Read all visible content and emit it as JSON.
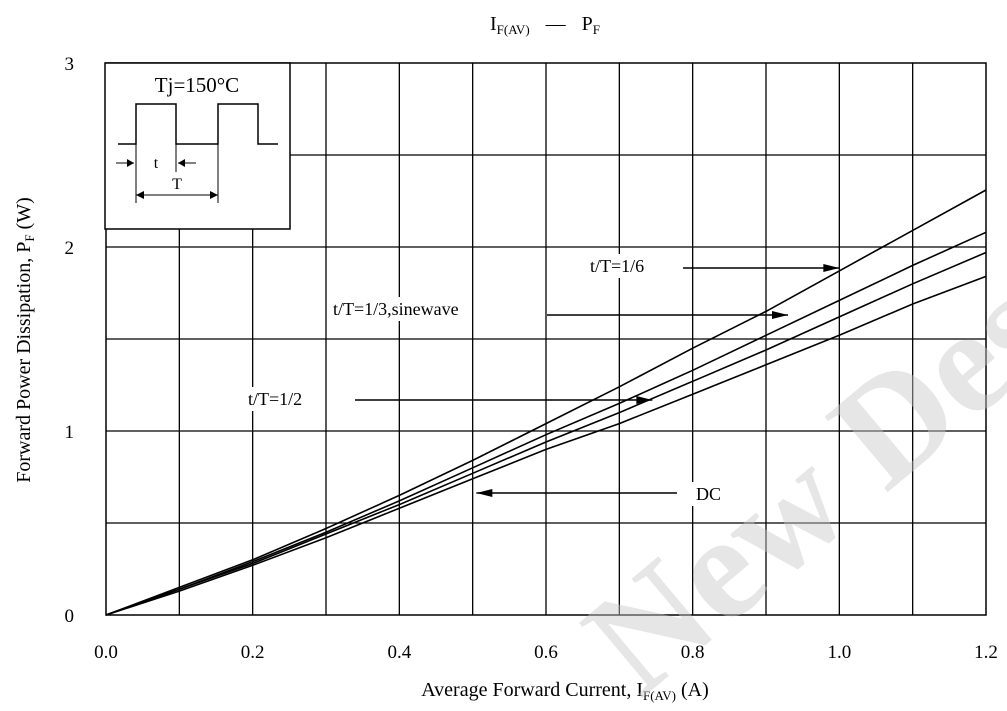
{
  "chart_data": {
    "type": "line",
    "title": {
      "main": "I",
      "sub": "F(AV)",
      "dash": "—",
      "main2": "P",
      "sub2": "F"
    },
    "xlabel": {
      "pre": "Average Forward Current, I",
      "sub": "F(AV)",
      "post": " (A)"
    },
    "ylabel": {
      "pre": "Forward Power Dissipation, P",
      "sub": "F",
      "post": " (W)"
    },
    "xlim": [
      0,
      1.2
    ],
    "ylim": [
      0,
      3
    ],
    "x_ticks": [
      "0.0",
      "0.2",
      "0.4",
      "0.6",
      "0.8",
      "1.0",
      "1.2"
    ],
    "y_ticks": [
      "0",
      "1",
      "2",
      "3"
    ],
    "grid": true,
    "series": [
      {
        "name": "t/T=1/6",
        "x": [
          0,
          0.1,
          0.2,
          0.3,
          0.4,
          0.5,
          0.6,
          0.7,
          0.8,
          0.9,
          1.0,
          1.1,
          1.2
        ],
        "y": [
          0,
          0.15,
          0.3,
          0.47,
          0.65,
          0.84,
          1.04,
          1.24,
          1.45,
          1.65,
          1.87,
          2.09,
          2.31
        ]
      },
      {
        "name": "t/T=1/3,sinewave",
        "x": [
          0,
          0.1,
          0.2,
          0.3,
          0.4,
          0.5,
          0.6,
          0.7,
          0.8,
          0.9,
          1.0,
          1.1,
          1.2
        ],
        "y": [
          0,
          0.14,
          0.29,
          0.45,
          0.62,
          0.8,
          0.98,
          1.15,
          1.33,
          1.52,
          1.71,
          1.9,
          2.08
        ]
      },
      {
        "name": "t/T=1/2",
        "x": [
          0,
          0.1,
          0.2,
          0.3,
          0.4,
          0.5,
          0.6,
          0.7,
          0.8,
          0.9,
          1.0,
          1.1,
          1.2
        ],
        "y": [
          0,
          0.14,
          0.28,
          0.44,
          0.6,
          0.77,
          0.94,
          1.1,
          1.27,
          1.44,
          1.62,
          1.8,
          1.97
        ]
      },
      {
        "name": "DC",
        "x": [
          0,
          0.1,
          0.2,
          0.3,
          0.4,
          0.5,
          0.6,
          0.7,
          0.8,
          0.9,
          1.0,
          1.1,
          1.2
        ],
        "y": [
          0,
          0.13,
          0.27,
          0.42,
          0.58,
          0.74,
          0.9,
          1.04,
          1.2,
          1.36,
          1.52,
          1.69,
          1.84
        ]
      }
    ],
    "annotations": [
      {
        "label": "t/T=1/6",
        "arrow": "right",
        "target_series": "t/T=1/6"
      },
      {
        "label": "t/T=1/3,sinewave",
        "arrow": "right",
        "target_series": "t/T=1/3,sinewave"
      },
      {
        "label": "t/T=1/2",
        "arrow": "right",
        "target_series": "t/T=1/2"
      },
      {
        "label": "DC",
        "arrow": "left",
        "target_series": "DC"
      }
    ],
    "inset": {
      "condition": "Tj=150°C",
      "t_label": "t",
      "T_label": "T"
    }
  },
  "watermark": "New Design"
}
